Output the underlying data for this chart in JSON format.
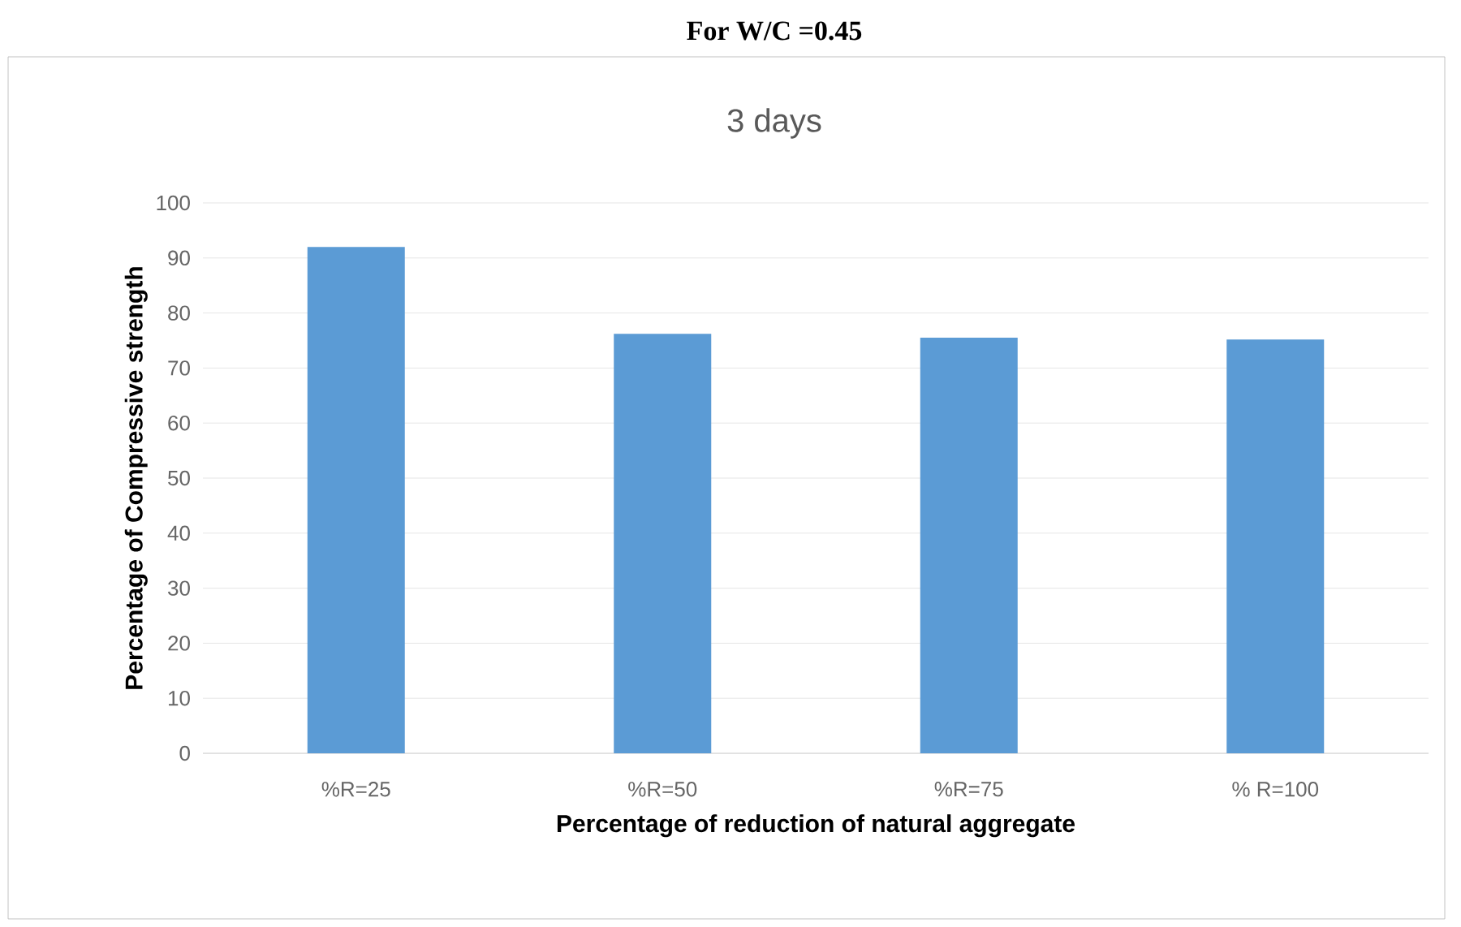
{
  "chart_data": {
    "type": "bar",
    "title": "For W/C =0.45",
    "subtitle": "3 days",
    "xlabel": "Percentage of reduction of natural aggregate",
    "ylabel": "Percentage of Compressive strength",
    "categories": [
      "%R=25",
      "%R=50",
      "%R=75",
      "% R=100"
    ],
    "values": [
      92,
      76.2,
      75.5,
      75.2
    ],
    "color": "#5b9bd5",
    "ylim": [
      0,
      100
    ],
    "yticks": [
      0,
      10,
      20,
      30,
      40,
      50,
      60,
      70,
      80,
      90,
      100
    ],
    "grid": "y"
  }
}
